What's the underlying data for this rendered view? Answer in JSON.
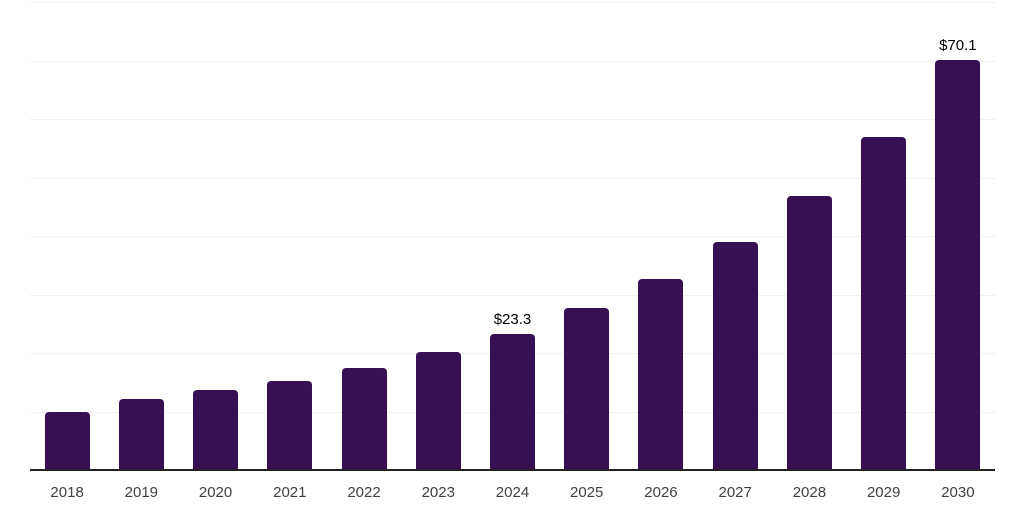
{
  "chart_data": {
    "type": "bar",
    "title": "",
    "xlabel": "",
    "ylabel": "",
    "categories": [
      "2018",
      "2019",
      "2020",
      "2021",
      "2022",
      "2023",
      "2024",
      "2025",
      "2026",
      "2027",
      "2028",
      "2029",
      "2030"
    ],
    "values": [
      9.9,
      12.1,
      13.6,
      15.3,
      17.5,
      20.2,
      23.3,
      27.7,
      32.7,
      38.9,
      46.9,
      57.0,
      70.1
    ],
    "data_labels": [
      null,
      null,
      null,
      null,
      null,
      null,
      "$23.3",
      null,
      null,
      null,
      null,
      null,
      "$70.1"
    ],
    "currency_prefix": "$",
    "ylim": [
      0,
      80
    ],
    "grid_interval": 10,
    "grid": "horizontal-only",
    "legend": "none",
    "y_axis_tick_labels": "none"
  },
  "colors": {
    "bar_fill": "#371053",
    "axis_line": "#222222",
    "gridline": "#F1F1F3",
    "tick_label": "#404040",
    "data_label": "#000000",
    "background": "#FFFFFF"
  }
}
